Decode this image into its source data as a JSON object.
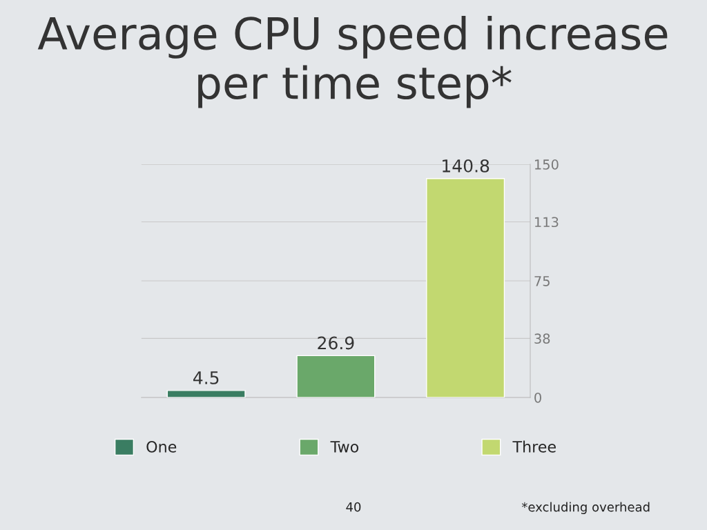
{
  "chart_data": {
    "type": "bar",
    "title": "Average CPU speed increase\nper time step*",
    "categories": [
      null,
      null,
      null
    ],
    "series": [
      {
        "name": "One",
        "color": "#3a7d62",
        "values": [
          4.5,
          null,
          null
        ]
      },
      {
        "name": "Two",
        "color": "#6aa86a",
        "values": [
          null,
          26.9,
          null
        ]
      },
      {
        "name": "Three",
        "color": "#c2d870",
        "values": [
          null,
          null,
          140.8
        ]
      }
    ],
    "ylim": [
      0,
      150
    ],
    "yticks": [
      0,
      38,
      75,
      113,
      150
    ],
    "grid": "y",
    "legend": "bottom",
    "data_labels": true,
    "tick_labels": "y",
    "annotations": [
      "40",
      "*excluding overhead"
    ]
  }
}
